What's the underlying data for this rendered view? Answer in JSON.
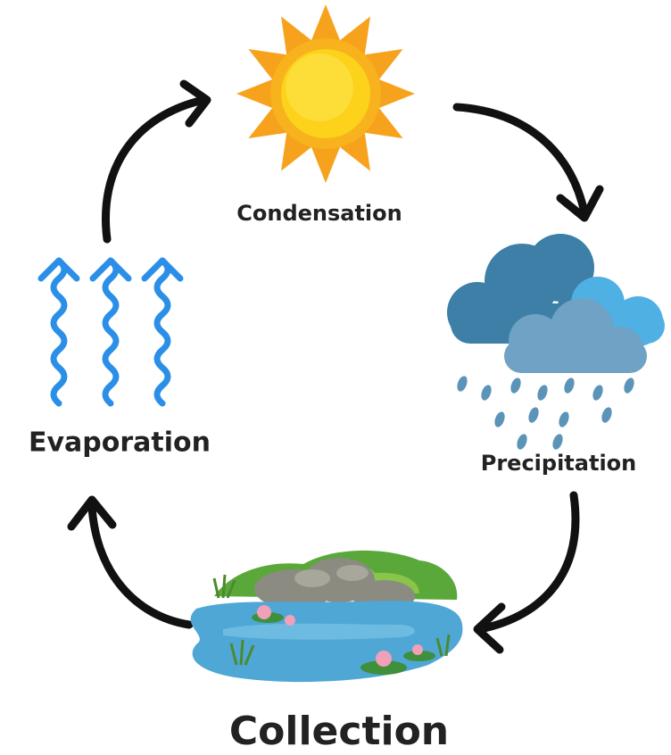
{
  "nodes": [
    {
      "label": "Condensation"
    },
    {
      "label": "Precipitation"
    },
    {
      "label": "Collection"
    },
    {
      "label": "Evaporation"
    }
  ]
}
